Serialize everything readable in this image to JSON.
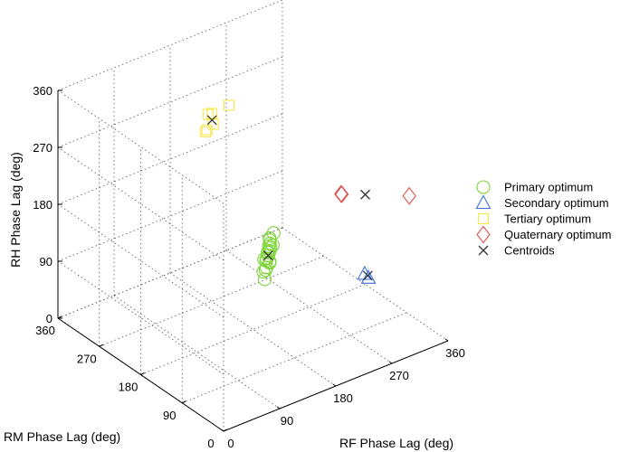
{
  "chart_data": {
    "type": "scatter",
    "projection": "3d",
    "title": "",
    "xlabel": "RF Phase Lag (deg)",
    "ylabel": "RM Phase Lag (deg)",
    "zlabel": "RH Phase Lag (deg)",
    "xlim": [
      0,
      360
    ],
    "ylim": [
      0,
      360
    ],
    "zlim": [
      0,
      360
    ],
    "xticks": [
      "0",
      "90",
      "180",
      "270",
      "360"
    ],
    "yticks": [
      "0",
      "90",
      "180",
      "270",
      "360"
    ],
    "zticks": [
      "0",
      "90",
      "180",
      "270",
      "360"
    ],
    "grid": true,
    "legend_position": "right",
    "series": [
      {
        "name": "Primary optimum",
        "marker": "circle",
        "color": "#7fd43a",
        "points": [
          [
            220,
            210,
            80
          ],
          [
            230,
            215,
            85
          ],
          [
            225,
            205,
            75
          ],
          [
            235,
            220,
            90
          ],
          [
            215,
            200,
            70
          ],
          [
            240,
            225,
            95
          ],
          [
            228,
            212,
            82
          ],
          [
            222,
            208,
            78
          ],
          [
            236,
            218,
            88
          ],
          [
            218,
            202,
            72
          ],
          [
            232,
            214,
            86
          ],
          [
            226,
            206,
            76
          ],
          [
            238,
            222,
            92
          ],
          [
            224,
            210,
            80
          ],
          [
            230,
            216,
            84
          ],
          [
            250,
            230,
            100
          ],
          [
            210,
            195,
            60
          ],
          [
            245,
            225,
            85
          ],
          [
            215,
            205,
            65
          ],
          [
            242,
            228,
            96
          ]
        ]
      },
      {
        "name": "Secondary optimum",
        "marker": "triangle",
        "color": "#3c6fe0",
        "points": [
          [
            300,
            100,
            80
          ],
          [
            312,
            108,
            65
          ]
        ]
      },
      {
        "name": "Tertiary optimum",
        "marker": "square",
        "color": "#f5e94a",
        "points": [
          [
            200,
            305,
            270
          ],
          [
            205,
            300,
            255
          ],
          [
            210,
            310,
            265
          ],
          [
            195,
            300,
            250
          ],
          [
            230,
            300,
            275
          ],
          [
            200,
            310,
            240
          ]
        ]
      },
      {
        "name": "Quaternary optimum",
        "marker": "diamond",
        "color": "#d9534a",
        "points": [
          [
            240,
            70,
            245
          ],
          [
            245,
            75,
            240
          ],
          [
            320,
            30,
            230
          ]
        ]
      },
      {
        "name": "Centroids",
        "marker": "x",
        "color": "#333333",
        "points": [
          [
            228,
            212,
            82
          ],
          [
            308,
            104,
            72
          ],
          [
            205,
            303,
            260
          ],
          [
            270,
            58,
            238
          ]
        ]
      }
    ]
  }
}
